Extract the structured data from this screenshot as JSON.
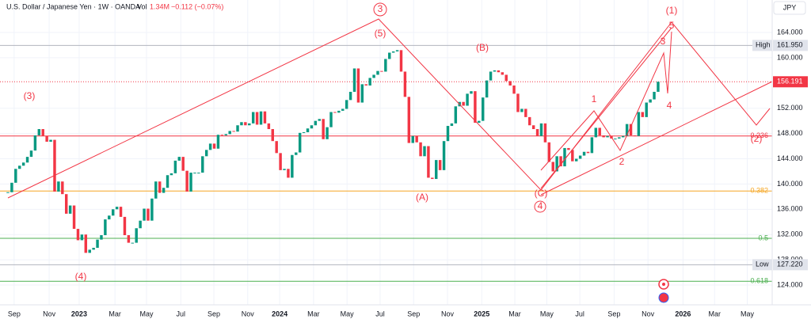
{
  "header": {
    "symbol": "U.S. Dollar / Japanese Yen · 1W · OANDA",
    "vol_label": "Vol",
    "volume": "1.34M",
    "change": "−0.112 (−0.07%)",
    "currency": "JPY"
  },
  "chart_data": {
    "type": "candlestick",
    "values": [
      138.7,
      140.2,
      142.4,
      142.9,
      143.4,
      144.3,
      145.3,
      147.7,
      148.7,
      147.6,
      146.7,
      147.0,
      138.8,
      140.4,
      138.4,
      135.3,
      136.6,
      132.9,
      131.1,
      132.0,
      129.1,
      129.6,
      129.9,
      131.2,
      131.9,
      134.4,
      135.0,
      136.0,
      136.4,
      134.8,
      131.9,
      130.7,
      130.7,
      133.0,
      134.2,
      136.1,
      134.2,
      137.7,
      140.4,
      138.6,
      139.4,
      141.4,
      141.7,
      143.7,
      144.3,
      142.1,
      138.8,
      141.8,
      141.8,
      141.8,
      144.4,
      145.4,
      146.4,
      145.6,
      147.8,
      147.7,
      147.9,
      148.4,
      148.3,
      149.3,
      149.8,
      149.3,
      149.6,
      151.4,
      149.4,
      151.5,
      149.6,
      148.7,
      146.8,
      144.9,
      142.2,
      142.4,
      141.0,
      144.6,
      145.0,
      148.1,
      148.2,
      148.8,
      149.3,
      150.0,
      150.3,
      147.1,
      149.0,
      151.4,
      151.3,
      151.6,
      151.9,
      153.3,
      154.6,
      158.3,
      152.9,
      155.8,
      155.6,
      156.8,
      157.3,
      157.9,
      157.8,
      159.8,
      160.8,
      161.0,
      161.2,
      157.8,
      153.8,
      146.5,
      147.6,
      146.6,
      144.4,
      146.0,
      141.0,
      140.8,
      143.8,
      142.2,
      146.8,
      149.2,
      149.6,
      152.3,
      153.0,
      152.4,
      154.3,
      154.7,
      149.7,
      150.0,
      153.7,
      156.4,
      157.8,
      158.0,
      157.7,
      157.3,
      156.3,
      155.6,
      154.3,
      151.4,
      151.9,
      150.6,
      149.3,
      148.7,
      147.6,
      149.6,
      146.6,
      143.5,
      142.0,
      144.4,
      142.8,
      145.7,
      145.4,
      143.6,
      144.0,
      144.5,
      145.1,
      144.9,
      147.4,
      148.9,
      147.7,
      147.4,
      147.6,
      147.2,
      147.2,
      147.4,
      147.6,
      149.5,
      147.7,
      147.6,
      151.4,
      150.6,
      152.9,
      153.4,
      154.6,
      156.2
    ],
    "up_color": "#089981",
    "down_color": "#f23645",
    "xlim": [
      -2.03,
      196.3
    ],
    "xticks": [
      {
        "value": 1.6,
        "label": "Sep"
      },
      {
        "value": 10.6,
        "label": "Nov"
      },
      {
        "value": 18.3,
        "label": "2023"
      },
      {
        "value": 27.5,
        "label": "Mar"
      },
      {
        "value": 35.6,
        "label": "May"
      },
      {
        "value": 44.4,
        "label": "Jul"
      },
      {
        "value": 52.9,
        "label": "Sep"
      },
      {
        "value": 61.6,
        "label": "Nov"
      },
      {
        "value": 69.8,
        "label": "2024"
      },
      {
        "value": 78.5,
        "label": "Mar"
      },
      {
        "value": 87.1,
        "label": "May"
      },
      {
        "value": 95.6,
        "label": "Jul"
      },
      {
        "value": 104.2,
        "label": "Sep"
      },
      {
        "value": 112.9,
        "label": "Nov"
      },
      {
        "value": 121.7,
        "label": "2025"
      },
      {
        "value": 130.2,
        "label": "Mar"
      },
      {
        "value": 138.4,
        "label": "May"
      },
      {
        "value": 146.9,
        "label": "Jul"
      },
      {
        "value": 155.7,
        "label": "Sep"
      },
      {
        "value": 164.4,
        "label": "Nov"
      },
      {
        "value": 173.4,
        "label": "2026"
      },
      {
        "value": 181.5,
        "label": "Mar"
      },
      {
        "value": 189.9,
        "label": "May"
      }
    ],
    "ylim": [
      120.87,
      169.14
    ],
    "yticks": [
      {
        "value": 124,
        "label": "124.000"
      },
      {
        "value": 128,
        "label": "128.000"
      },
      {
        "value": 132,
        "label": "132.000"
      },
      {
        "value": 136,
        "label": "136.000"
      },
      {
        "value": 140,
        "label": "140.000"
      },
      {
        "value": 144,
        "label": "144.000"
      },
      {
        "value": 148,
        "label": "148.000"
      },
      {
        "value": 152,
        "label": "152.000"
      },
      {
        "value": 160,
        "label": "160.000"
      },
      {
        "value": 164,
        "label": "164.000"
      }
    ],
    "grid": true,
    "levels": [
      {
        "value": 147.6,
        "label": "0.236",
        "color": "#f23645"
      },
      {
        "value": 138.9,
        "label": "0.382",
        "color": "#f5a623"
      },
      {
        "value": 131.4,
        "label": "0.5",
        "color": "#4caf50"
      },
      {
        "value": 124.6,
        "label": "0.618",
        "color": "#4caf50"
      }
    ],
    "high": {
      "name": "High",
      "value": 161.95,
      "label": "161.950"
    },
    "low": {
      "name": "Low",
      "value": 127.22,
      "label": "127.220"
    },
    "last": {
      "value": 156.191,
      "label": "156.191"
    },
    "annotations": [
      "(3)",
      "(4)",
      "3",
      "(5)",
      "(B)",
      "(A)",
      "(C)",
      "4",
      "(1)",
      "5",
      "3",
      "4",
      "1",
      "2",
      "(2)"
    ]
  }
}
